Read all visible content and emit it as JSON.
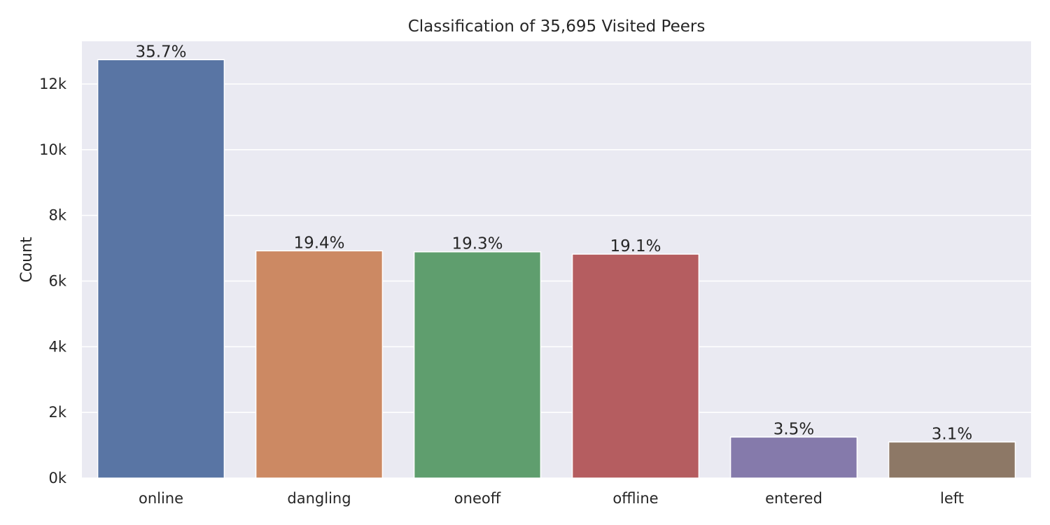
{
  "chart_data": {
    "type": "bar",
    "title": "Classification of 35,695 Visited Peers",
    "xlabel": "",
    "ylabel": "Count",
    "ylim": [
      0,
      13300
    ],
    "yticks": [
      0,
      2000,
      4000,
      6000,
      8000,
      10000,
      12000
    ],
    "ytick_labels": [
      "0k",
      "2k",
      "4k",
      "6k",
      "8k",
      "10k",
      "12k"
    ],
    "grid": true,
    "categories": [
      "online",
      "dangling",
      "oneoff",
      "offline",
      "entered",
      "left"
    ],
    "values": [
      12740,
      6920,
      6890,
      6820,
      1250,
      1100
    ],
    "data_labels": [
      "35.7%",
      "19.4%",
      "19.3%",
      "19.1%",
      "3.5%",
      "3.1%"
    ],
    "colors": [
      "#5975a4",
      "#cc8963",
      "#5f9e6e",
      "#b55d60",
      "#857aab",
      "#8d7866"
    ],
    "background_color": "#eaeaf2"
  }
}
